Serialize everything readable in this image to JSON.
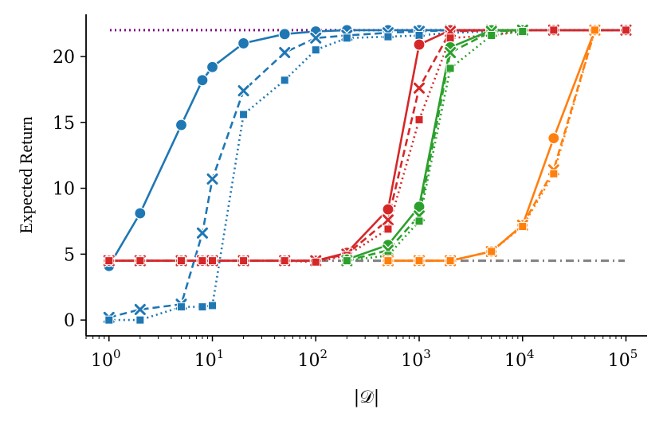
{
  "chart_data": {
    "type": "line",
    "title": "",
    "xlabel": "|𝒟|",
    "ylabel": "Expected Return",
    "xscale": "log",
    "xlim": [
      0.6,
      160000
    ],
    "ylim": [
      -1.2,
      23.2
    ],
    "x_ticks": [
      {
        "value": 1,
        "base": "10",
        "exp": "0"
      },
      {
        "value": 10,
        "base": "10",
        "exp": "1"
      },
      {
        "value": 100,
        "base": "10",
        "exp": "2"
      },
      {
        "value": 1000,
        "base": "10",
        "exp": "3"
      },
      {
        "value": 10000,
        "base": "10",
        "exp": "4"
      },
      {
        "value": 100000,
        "base": "10",
        "exp": "5"
      }
    ],
    "y_ticks": [
      {
        "value": 0,
        "label": "0"
      },
      {
        "value": 5,
        "label": "5"
      },
      {
        "value": 10,
        "label": "10"
      },
      {
        "value": 15,
        "label": "15"
      },
      {
        "value": 20,
        "label": "20"
      }
    ],
    "reference_lines": [
      {
        "name": "optimal-return",
        "y": 22,
        "color": "#800080",
        "dash": "dotted"
      },
      {
        "name": "baseline-return",
        "y": 4.5,
        "color": "#808080",
        "dash": "dashdot"
      }
    ],
    "series": [
      {
        "name": "blue-circle",
        "color": "#1f77b4",
        "dash": "solid",
        "marker": "circle",
        "x": [
          1,
          2,
          5,
          8,
          10,
          20,
          50,
          100,
          200,
          500,
          1000,
          2000,
          5000,
          10000,
          20000,
          50000,
          100000
        ],
        "y": [
          4.1,
          8.1,
          14.8,
          18.2,
          19.2,
          21.0,
          21.7,
          21.9,
          22.0,
          22.0,
          22.0,
          22.0,
          22.0,
          22.0,
          22.0,
          22.0,
          22.0
        ]
      },
      {
        "name": "blue-cross",
        "color": "#1f77b4",
        "dash": "dashed",
        "marker": "x",
        "x": [
          1,
          2,
          5,
          8,
          10,
          20,
          50,
          100,
          200,
          500,
          1000,
          2000,
          5000,
          10000,
          20000,
          50000,
          100000
        ],
        "y": [
          0.2,
          0.8,
          1.2,
          6.6,
          10.7,
          17.4,
          20.3,
          21.4,
          21.6,
          21.8,
          21.9,
          22.0,
          22.0,
          22.0,
          22.0,
          22.0,
          22.0
        ]
      },
      {
        "name": "blue-square",
        "color": "#1f77b4",
        "dash": "dotted",
        "marker": "square",
        "x": [
          1,
          2,
          5,
          8,
          10,
          20,
          50,
          100,
          200,
          500,
          1000,
          2000,
          5000,
          10000,
          20000,
          50000,
          100000
        ],
        "y": [
          0.0,
          0.0,
          1.0,
          1.0,
          1.1,
          15.6,
          18.2,
          20.5,
          21.4,
          21.5,
          21.6,
          21.8,
          21.9,
          22.0,
          22.0,
          22.0,
          22.0
        ]
      },
      {
        "name": "red-circle",
        "color": "#d62728",
        "dash": "solid",
        "marker": "circle",
        "x": [
          1,
          2,
          5,
          8,
          10,
          20,
          50,
          100,
          200,
          500,
          1000,
          2000,
          5000,
          10000,
          20000,
          50000,
          100000
        ],
        "y": [
          4.5,
          4.5,
          4.5,
          4.5,
          4.5,
          4.5,
          4.5,
          4.5,
          5.1,
          8.4,
          20.9,
          22.0,
          22.0,
          22.0,
          22.0,
          22.0,
          22.0
        ]
      },
      {
        "name": "red-cross",
        "color": "#d62728",
        "dash": "dashed",
        "marker": "x",
        "x": [
          1,
          2,
          5,
          8,
          10,
          20,
          50,
          100,
          200,
          500,
          1000,
          2000,
          5000,
          10000,
          20000,
          50000,
          100000
        ],
        "y": [
          4.5,
          4.5,
          4.5,
          4.5,
          4.5,
          4.5,
          4.5,
          4.5,
          5.0,
          7.6,
          17.6,
          21.9,
          22.0,
          22.0,
          22.0,
          22.0,
          22.0
        ]
      },
      {
        "name": "red-square",
        "color": "#d62728",
        "dash": "dotted",
        "marker": "square",
        "x": [
          1,
          2,
          5,
          8,
          10,
          20,
          50,
          100,
          200,
          500,
          1000,
          2000,
          5000,
          10000,
          20000,
          50000,
          100000
        ],
        "y": [
          4.5,
          4.5,
          4.5,
          4.5,
          4.5,
          4.5,
          4.5,
          4.4,
          4.9,
          6.9,
          15.2,
          21.4,
          21.6,
          22.0,
          22.0,
          22.0,
          22.0
        ]
      },
      {
        "name": "green-circle",
        "color": "#2ca02c",
        "dash": "solid",
        "marker": "circle",
        "x": [
          200,
          500,
          1000,
          2000,
          5000,
          10000
        ],
        "y": [
          4.6,
          5.7,
          8.6,
          20.7,
          22.0,
          22.0
        ]
      },
      {
        "name": "green-cross",
        "color": "#2ca02c",
        "dash": "dashed",
        "marker": "x",
        "x": [
          200,
          500,
          1000,
          2000,
          5000,
          10000
        ],
        "y": [
          4.5,
          5.3,
          7.9,
          20.3,
          21.9,
          22.0
        ]
      },
      {
        "name": "green-square",
        "color": "#2ca02c",
        "dash": "dotted",
        "marker": "square",
        "x": [
          200,
          500,
          1000,
          2000,
          5000,
          10000
        ],
        "y": [
          4.5,
          4.9,
          7.5,
          19.1,
          21.6,
          21.9
        ]
      },
      {
        "name": "orange-circle",
        "color": "#ff7f0e",
        "dash": "solid",
        "marker": "circle",
        "x": [
          500,
          1000,
          2000,
          5000,
          10000,
          20000,
          50000
        ],
        "y": [
          4.5,
          4.5,
          4.5,
          5.2,
          7.2,
          13.8,
          22.0
        ]
      },
      {
        "name": "orange-cross",
        "color": "#ff7f0e",
        "dash": "dashed",
        "marker": "x",
        "x": [
          500,
          1000,
          2000,
          5000,
          10000,
          20000,
          50000
        ],
        "y": [
          4.5,
          4.5,
          4.5,
          5.2,
          7.2,
          11.4,
          22.0
        ]
      },
      {
        "name": "orange-square",
        "color": "#ff7f0e",
        "dash": "dotted",
        "marker": "square",
        "x": [
          500,
          1000,
          2000,
          5000,
          10000,
          20000,
          50000
        ],
        "y": [
          4.5,
          4.5,
          4.5,
          5.2,
          7.1,
          11.1,
          22.0
        ]
      }
    ]
  }
}
